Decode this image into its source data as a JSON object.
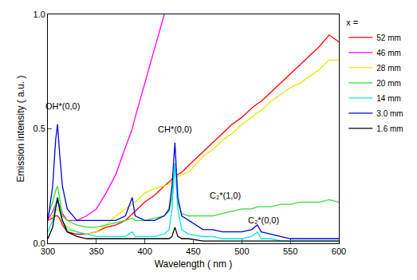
{
  "chart_data": {
    "type": "line",
    "x_label": "Wavelength ( nm )",
    "y_label": "Emission intensity ( a.u. )",
    "legend_title": "x =",
    "legend": "right",
    "grid": false,
    "xlim": [
      300,
      600
    ],
    "xticks": [
      300,
      350,
      400,
      450,
      500,
      550,
      600
    ],
    "ylim": [
      0,
      1.0
    ],
    "yticks": [
      {
        "value": 0,
        "label": "0.0"
      },
      {
        "value": 0.5,
        "label": "0.5"
      },
      {
        "value": 1.0,
        "label": "1.0"
      }
    ],
    "annotations": [
      {
        "text": "OH*(0,0)",
        "x": 315,
        "y": 0.6
      },
      {
        "text": "CH*(0,0)",
        "x": 431,
        "y": 0.5
      },
      {
        "text": "C₂*(1,0)",
        "x": 483,
        "y": 0.21
      },
      {
        "text": "C₂*(0,0)",
        "x": 522,
        "y": 0.1
      }
    ],
    "x": [
      300,
      305,
      308,
      310,
      312,
      315,
      320,
      330,
      340,
      350,
      360,
      370,
      380,
      387,
      390,
      400,
      410,
      420,
      425,
      428,
      431,
      434,
      438,
      445,
      460,
      470,
      480,
      490,
      500,
      510,
      516,
      520,
      530,
      540,
      550,
      560,
      570,
      580,
      590,
      600
    ],
    "series": [
      {
        "name": "52 mm",
        "color": "#ff0000",
        "values": [
          0.1,
          0.11,
          0.12,
          0.12,
          0.11,
          0.08,
          0.05,
          0.04,
          0.04,
          0.05,
          0.07,
          0.08,
          0.1,
          0.13,
          0.14,
          0.18,
          0.21,
          0.25,
          0.27,
          0.28,
          0.3,
          0.3,
          0.31,
          0.34,
          0.4,
          0.44,
          0.48,
          0.52,
          0.55,
          0.59,
          0.61,
          0.62,
          0.66,
          0.7,
          0.74,
          0.78,
          0.82,
          0.86,
          0.91,
          0.88
        ]
      },
      {
        "name": "46 mm",
        "color": "#ff00ff",
        "values": [
          0.1,
          0.14,
          0.17,
          0.18,
          0.17,
          0.13,
          0.1,
          0.1,
          0.12,
          0.15,
          0.22,
          0.3,
          0.42,
          0.5,
          0.55,
          0.7,
          0.85,
          1.0,
          null,
          null,
          null,
          null,
          null,
          null,
          null,
          null,
          null,
          null,
          null,
          null,
          null,
          null,
          null,
          null,
          null,
          null,
          null,
          null,
          null,
          null
        ]
      },
      {
        "name": "28 mm",
        "color": "#e8e800",
        "values": [
          0.1,
          0.12,
          0.14,
          0.15,
          0.14,
          0.1,
          0.07,
          0.05,
          0.04,
          0.05,
          0.08,
          0.12,
          0.15,
          0.17,
          0.18,
          0.22,
          0.24,
          0.25,
          0.26,
          0.27,
          0.3,
          0.29,
          0.3,
          0.31,
          0.38,
          0.41,
          0.45,
          0.48,
          0.52,
          0.55,
          0.57,
          0.58,
          0.62,
          0.65,
          0.68,
          0.7,
          0.73,
          0.76,
          0.8,
          0.8
        ]
      },
      {
        "name": "20 mm",
        "color": "#33dd33",
        "values": [
          0.12,
          0.18,
          0.23,
          0.25,
          0.2,
          0.12,
          0.1,
          0.08,
          0.07,
          0.07,
          0.08,
          0.09,
          0.1,
          0.11,
          0.1,
          0.1,
          0.11,
          0.12,
          0.14,
          0.2,
          0.35,
          0.18,
          0.13,
          0.12,
          0.12,
          0.12,
          0.13,
          0.14,
          0.15,
          0.15,
          0.16,
          0.16,
          0.16,
          0.17,
          0.17,
          0.18,
          0.18,
          0.18,
          0.19,
          0.18
        ]
      },
      {
        "name": "14 mm",
        "color": "#00e5e5",
        "values": [
          0.05,
          0.1,
          0.17,
          0.2,
          0.16,
          0.1,
          0.06,
          0.05,
          0.04,
          0.03,
          0.03,
          0.03,
          0.03,
          0.05,
          0.03,
          0.03,
          0.03,
          0.04,
          0.06,
          0.15,
          0.35,
          0.15,
          0.06,
          0.04,
          0.03,
          0.03,
          0.02,
          0.02,
          0.02,
          0.03,
          0.05,
          0.02,
          0.02,
          0.01,
          0.01,
          0.01,
          0.01,
          0.01,
          0.01,
          0.01
        ]
      },
      {
        "name": "3.0 mm",
        "color": "#0000dd",
        "values": [
          0.1,
          0.25,
          0.45,
          0.52,
          0.4,
          0.25,
          0.15,
          0.1,
          0.1,
          0.1,
          0.1,
          0.1,
          0.12,
          0.2,
          0.12,
          0.1,
          0.1,
          0.12,
          0.15,
          0.25,
          0.44,
          0.2,
          0.12,
          0.1,
          0.06,
          0.06,
          0.05,
          0.05,
          0.05,
          0.06,
          0.08,
          0.05,
          0.04,
          0.03,
          0.02,
          0.02,
          0.02,
          0.02,
          0.02,
          0.02
        ]
      },
      {
        "name": "1.6 mm",
        "color": "#000000",
        "values": [
          0.02,
          0.07,
          0.15,
          0.2,
          0.15,
          0.1,
          0.05,
          0.03,
          0.02,
          0.02,
          0.02,
          0.02,
          0.02,
          0.02,
          0.02,
          0.02,
          0.02,
          0.02,
          0.02,
          0.03,
          0.07,
          0.03,
          0.02,
          0.02,
          0.01,
          0.01,
          0.01,
          0.01,
          0.01,
          0.01,
          0.01,
          0.01,
          0.01,
          0.01,
          0.01,
          0.01,
          0.01,
          0.01,
          0.01,
          0.01
        ]
      }
    ]
  }
}
